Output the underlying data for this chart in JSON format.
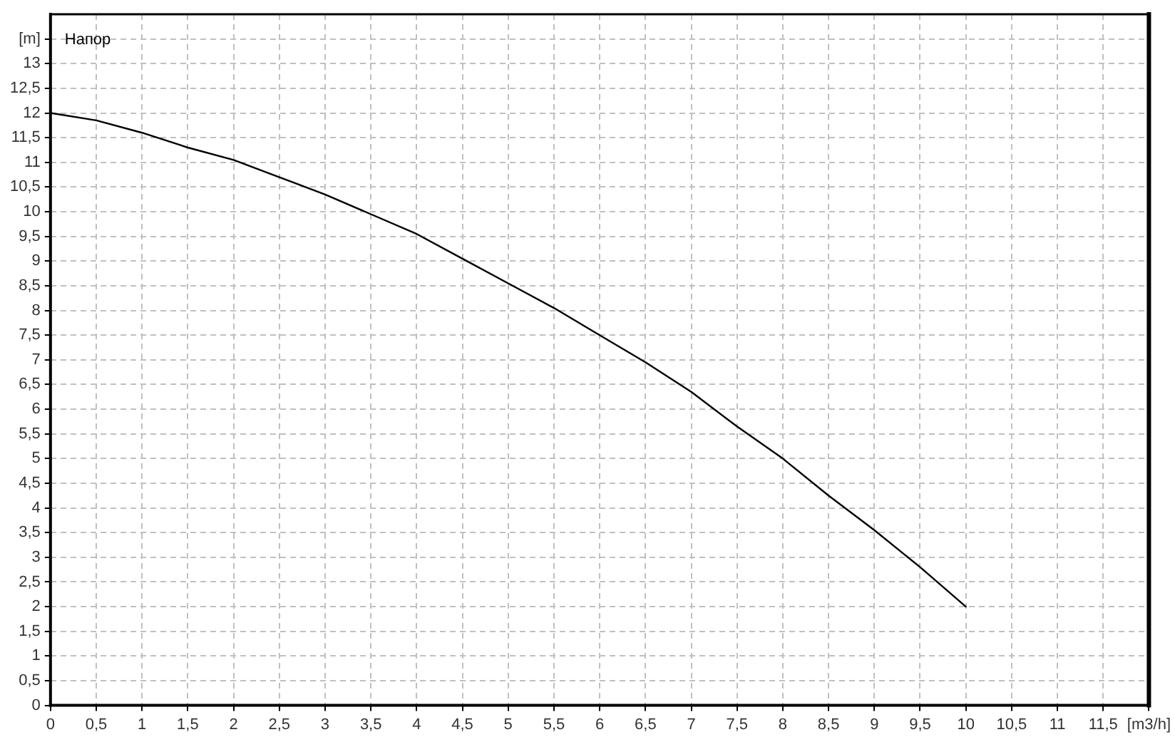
{
  "chart_data": {
    "type": "line",
    "title": "Напор",
    "x": [
      0,
      0.5,
      1,
      1.5,
      2,
      2.5,
      3,
      3.5,
      4,
      4.5,
      5,
      5.5,
      6,
      6.5,
      7,
      7.5,
      8,
      8.5,
      9,
      9.5,
      10
    ],
    "series": [
      {
        "color": "#000000",
        "values": [
          12,
          11.85,
          11.6,
          11.3,
          11.05,
          10.7,
          10.35,
          9.95,
          9.55,
          9.05,
          8.55,
          8.05,
          7.5,
          6.95,
          6.35,
          5.65,
          5,
          4.25,
          3.55,
          2.8,
          2
        ]
      }
    ],
    "xlim": [
      0,
      12
    ],
    "xticks": [
      0,
      {
        "value": 0.5,
        "label": "0,5"
      },
      1,
      {
        "value": 1.5,
        "label": "1,5"
      },
      2,
      {
        "value": 2.5,
        "label": "2,5"
      },
      3,
      {
        "value": 3.5,
        "label": "3,5"
      },
      4,
      {
        "value": 4.5,
        "label": "4,5"
      },
      5,
      {
        "value": 5.5,
        "label": "5,5"
      },
      6,
      {
        "value": 6.5,
        "label": "6,5"
      },
      7,
      {
        "value": 7.5,
        "label": "7,5"
      },
      8,
      {
        "value": 8.5,
        "label": "8,5"
      },
      9,
      {
        "value": 9.5,
        "label": "9,5"
      },
      10,
      {
        "value": 10.5,
        "label": "10,5"
      },
      11,
      {
        "value": 11.5,
        "label": "11,5"
      },
      {
        "value": 12,
        "label": "[m3/h]"
      }
    ],
    "ylim": [
      0,
      14
    ],
    "yticks": [
      0,
      {
        "value": 0.5,
        "label": "0,5"
      },
      1,
      {
        "value": 1.5,
        "label": "1,5"
      },
      2,
      {
        "value": 2.5,
        "label": "2,5"
      },
      3,
      {
        "value": 3.5,
        "label": "3,5"
      },
      4,
      {
        "value": 4.5,
        "label": "4,5"
      },
      5,
      {
        "value": 5.5,
        "label": "5,5"
      },
      6,
      {
        "value": 6.5,
        "label": "6,5"
      },
      7,
      {
        "value": 7.5,
        "label": "7,5"
      },
      8,
      {
        "value": 8.5,
        "label": "8,5"
      },
      9,
      {
        "value": 9.5,
        "label": "9,5"
      },
      10,
      {
        "value": 10.5,
        "label": "10,5"
      },
      11,
      {
        "value": 11.5,
        "label": "11,5"
      },
      12,
      {
        "value": 12.5,
        "label": "12,5"
      },
      13,
      {
        "value": 13.5,
        "label": "[m]"
      }
    ],
    "grid": true
  }
}
